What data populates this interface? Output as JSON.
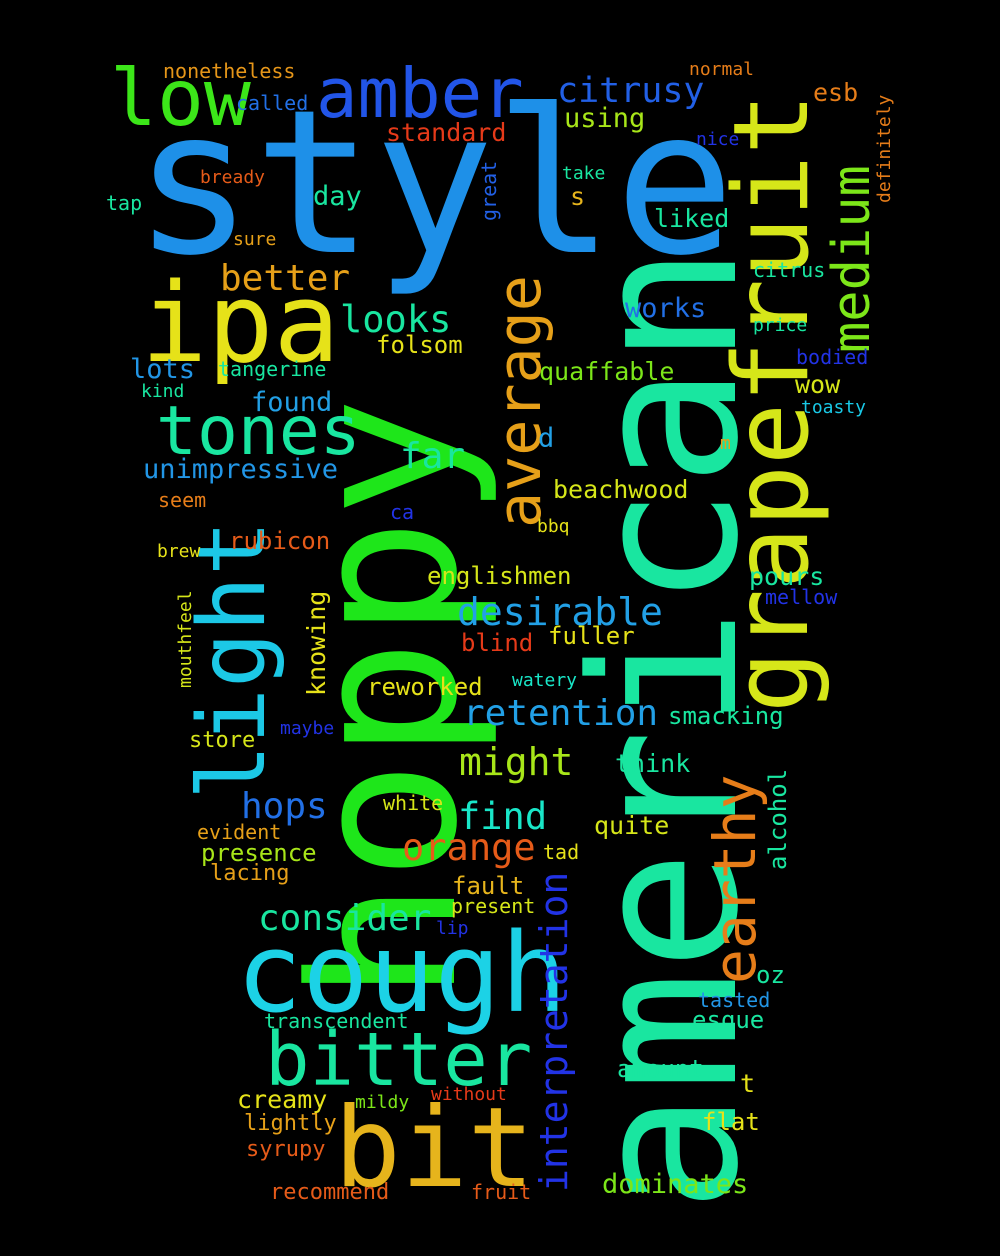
{
  "words": [
    {
      "text": "style",
      "color": "#1e90e8"
    },
    {
      "text": "american",
      "color": "#19e6a0"
    },
    {
      "text": "hoppy",
      "color": "#1ee61a"
    },
    {
      "text": "cough",
      "color": "#1cd2e6"
    },
    {
      "text": "grapefruit",
      "color": "#d6e619"
    },
    {
      "text": "ipa",
      "color": "#e6e219"
    },
    {
      "text": "bit",
      "color": "#e6b41c"
    },
    {
      "text": "light",
      "color": "#1cc8e6"
    },
    {
      "text": "bitter",
      "color": "#19e6a0"
    },
    {
      "text": "amber",
      "color": "#2255e8"
    },
    {
      "text": "low",
      "color": "#3ce619"
    },
    {
      "text": "tones",
      "color": "#19e6a0"
    },
    {
      "text": "average",
      "color": "#e6a019"
    },
    {
      "text": "medium",
      "color": "#7ce619"
    },
    {
      "text": "earthy",
      "color": "#e67d19"
    },
    {
      "text": "citrusy",
      "color": "#2260e6"
    },
    {
      "text": "interpretation",
      "color": "#2233e6"
    },
    {
      "text": "desirable",
      "color": "#22a0e6"
    },
    {
      "text": "retention",
      "color": "#22a0e6"
    },
    {
      "text": "might",
      "color": "#a8e619"
    },
    {
      "text": "better",
      "color": "#e6a019"
    },
    {
      "text": "looks",
      "color": "#19e6a0"
    },
    {
      "text": "consider",
      "color": "#19e6a0"
    },
    {
      "text": "orange",
      "color": "#e65b19"
    },
    {
      "text": "find",
      "color": "#19e6c8"
    },
    {
      "text": "hops",
      "color": "#2270e6"
    },
    {
      "text": "far",
      "color": "#19e6a0"
    },
    {
      "text": "unimpressive",
      "color": "#2296e6"
    },
    {
      "text": "nonetheless",
      "color": "#e69619"
    },
    {
      "text": "called",
      "color": "#2270e6"
    },
    {
      "text": "standard",
      "color": "#e63a19"
    },
    {
      "text": "using",
      "color": "#a8e619"
    },
    {
      "text": "normal",
      "color": "#e67d19"
    },
    {
      "text": "esb",
      "color": "#e67d19"
    },
    {
      "text": "definitely",
      "color": "#e67d19"
    },
    {
      "text": "nice",
      "color": "#2233e6"
    },
    {
      "text": "great",
      "color": "#2260e6"
    },
    {
      "text": "take",
      "color": "#19e6a0"
    },
    {
      "text": "s",
      "color": "#e6b41c"
    },
    {
      "text": "bready",
      "color": "#e65b19"
    },
    {
      "text": "day",
      "color": "#19e6a0"
    },
    {
      "text": "tap",
      "color": "#19e6a0"
    },
    {
      "text": "liked",
      "color": "#19e6a0"
    },
    {
      "text": "sure",
      "color": "#e6a019"
    },
    {
      "text": "citrus",
      "color": "#19e6a0"
    },
    {
      "text": "works",
      "color": "#2270e6"
    },
    {
      "text": "price",
      "color": "#19e6a0"
    },
    {
      "text": "folsom",
      "color": "#e6e219"
    },
    {
      "text": "lots",
      "color": "#2296e6"
    },
    {
      "text": "tangerine",
      "color": "#19e6a0"
    },
    {
      "text": "quaffable",
      "color": "#7ce619"
    },
    {
      "text": "bodied",
      "color": "#2233e6"
    },
    {
      "text": "kind",
      "color": "#19e6a0"
    },
    {
      "text": "found",
      "color": "#22a0e6"
    },
    {
      "text": "wow",
      "color": "#d6e619"
    },
    {
      "text": "toasty",
      "color": "#19c8e6"
    },
    {
      "text": "d",
      "color": "#22a0e6"
    },
    {
      "text": "m",
      "color": "#e6a019"
    },
    {
      "text": "beachwood",
      "color": "#d6e619"
    },
    {
      "text": "seem",
      "color": "#e67d19"
    },
    {
      "text": "ca",
      "color": "#2233e6"
    },
    {
      "text": "bbq",
      "color": "#e6e219"
    },
    {
      "text": "brew",
      "color": "#e6e219"
    },
    {
      "text": "rubicon",
      "color": "#e65b19"
    },
    {
      "text": "englishmen",
      "color": "#d6e619"
    },
    {
      "text": "pours",
      "color": "#19e6a0"
    },
    {
      "text": "mellow",
      "color": "#2233e6"
    },
    {
      "text": "knowing",
      "color": "#e6e219"
    },
    {
      "text": "mouthfeel",
      "color": "#d6e619"
    },
    {
      "text": "fuller",
      "color": "#e6e219"
    },
    {
      "text": "blind",
      "color": "#e63a19"
    },
    {
      "text": "reworked",
      "color": "#e6e219"
    },
    {
      "text": "watery",
      "color": "#19e6c8"
    },
    {
      "text": "maybe",
      "color": "#2233e6"
    },
    {
      "text": "smacking",
      "color": "#19e6a0"
    },
    {
      "text": "store",
      "color": "#d6e619"
    },
    {
      "text": "think",
      "color": "#19e6a0"
    },
    {
      "text": "alcohol",
      "color": "#19e6a0"
    },
    {
      "text": "white",
      "color": "#d6e619"
    },
    {
      "text": "evident",
      "color": "#e6a019"
    },
    {
      "text": "quite",
      "color": "#d6e619"
    },
    {
      "text": "presence",
      "color": "#a8e619"
    },
    {
      "text": "tad",
      "color": "#e6e219"
    },
    {
      "text": "lacing",
      "color": "#e6a019"
    },
    {
      "text": "fault",
      "color": "#e6b41c"
    },
    {
      "text": "present",
      "color": "#d6e619"
    },
    {
      "text": "lip",
      "color": "#2233e6"
    },
    {
      "text": "oz",
      "color": "#19e6a0"
    },
    {
      "text": "tasted",
      "color": "#2296e6"
    },
    {
      "text": "transcendent",
      "color": "#19e6a0"
    },
    {
      "text": "esque",
      "color": "#19e6a0"
    },
    {
      "text": "amount",
      "color": "#19e6a0"
    },
    {
      "text": "t",
      "color": "#e6e219"
    },
    {
      "text": "creamy",
      "color": "#e6e219"
    },
    {
      "text": "mildy",
      "color": "#7ce619"
    },
    {
      "text": "without",
      "color": "#e63a19"
    },
    {
      "text": "lightly",
      "color": "#e6a019"
    },
    {
      "text": "flat",
      "color": "#e6e219"
    },
    {
      "text": "syrupy",
      "color": "#e65b19"
    },
    {
      "text": "recommend",
      "color": "#e65b19"
    },
    {
      "text": "fruit",
      "color": "#e65b19"
    },
    {
      "text": "dominates",
      "color": "#7ce619"
    }
  ]
}
